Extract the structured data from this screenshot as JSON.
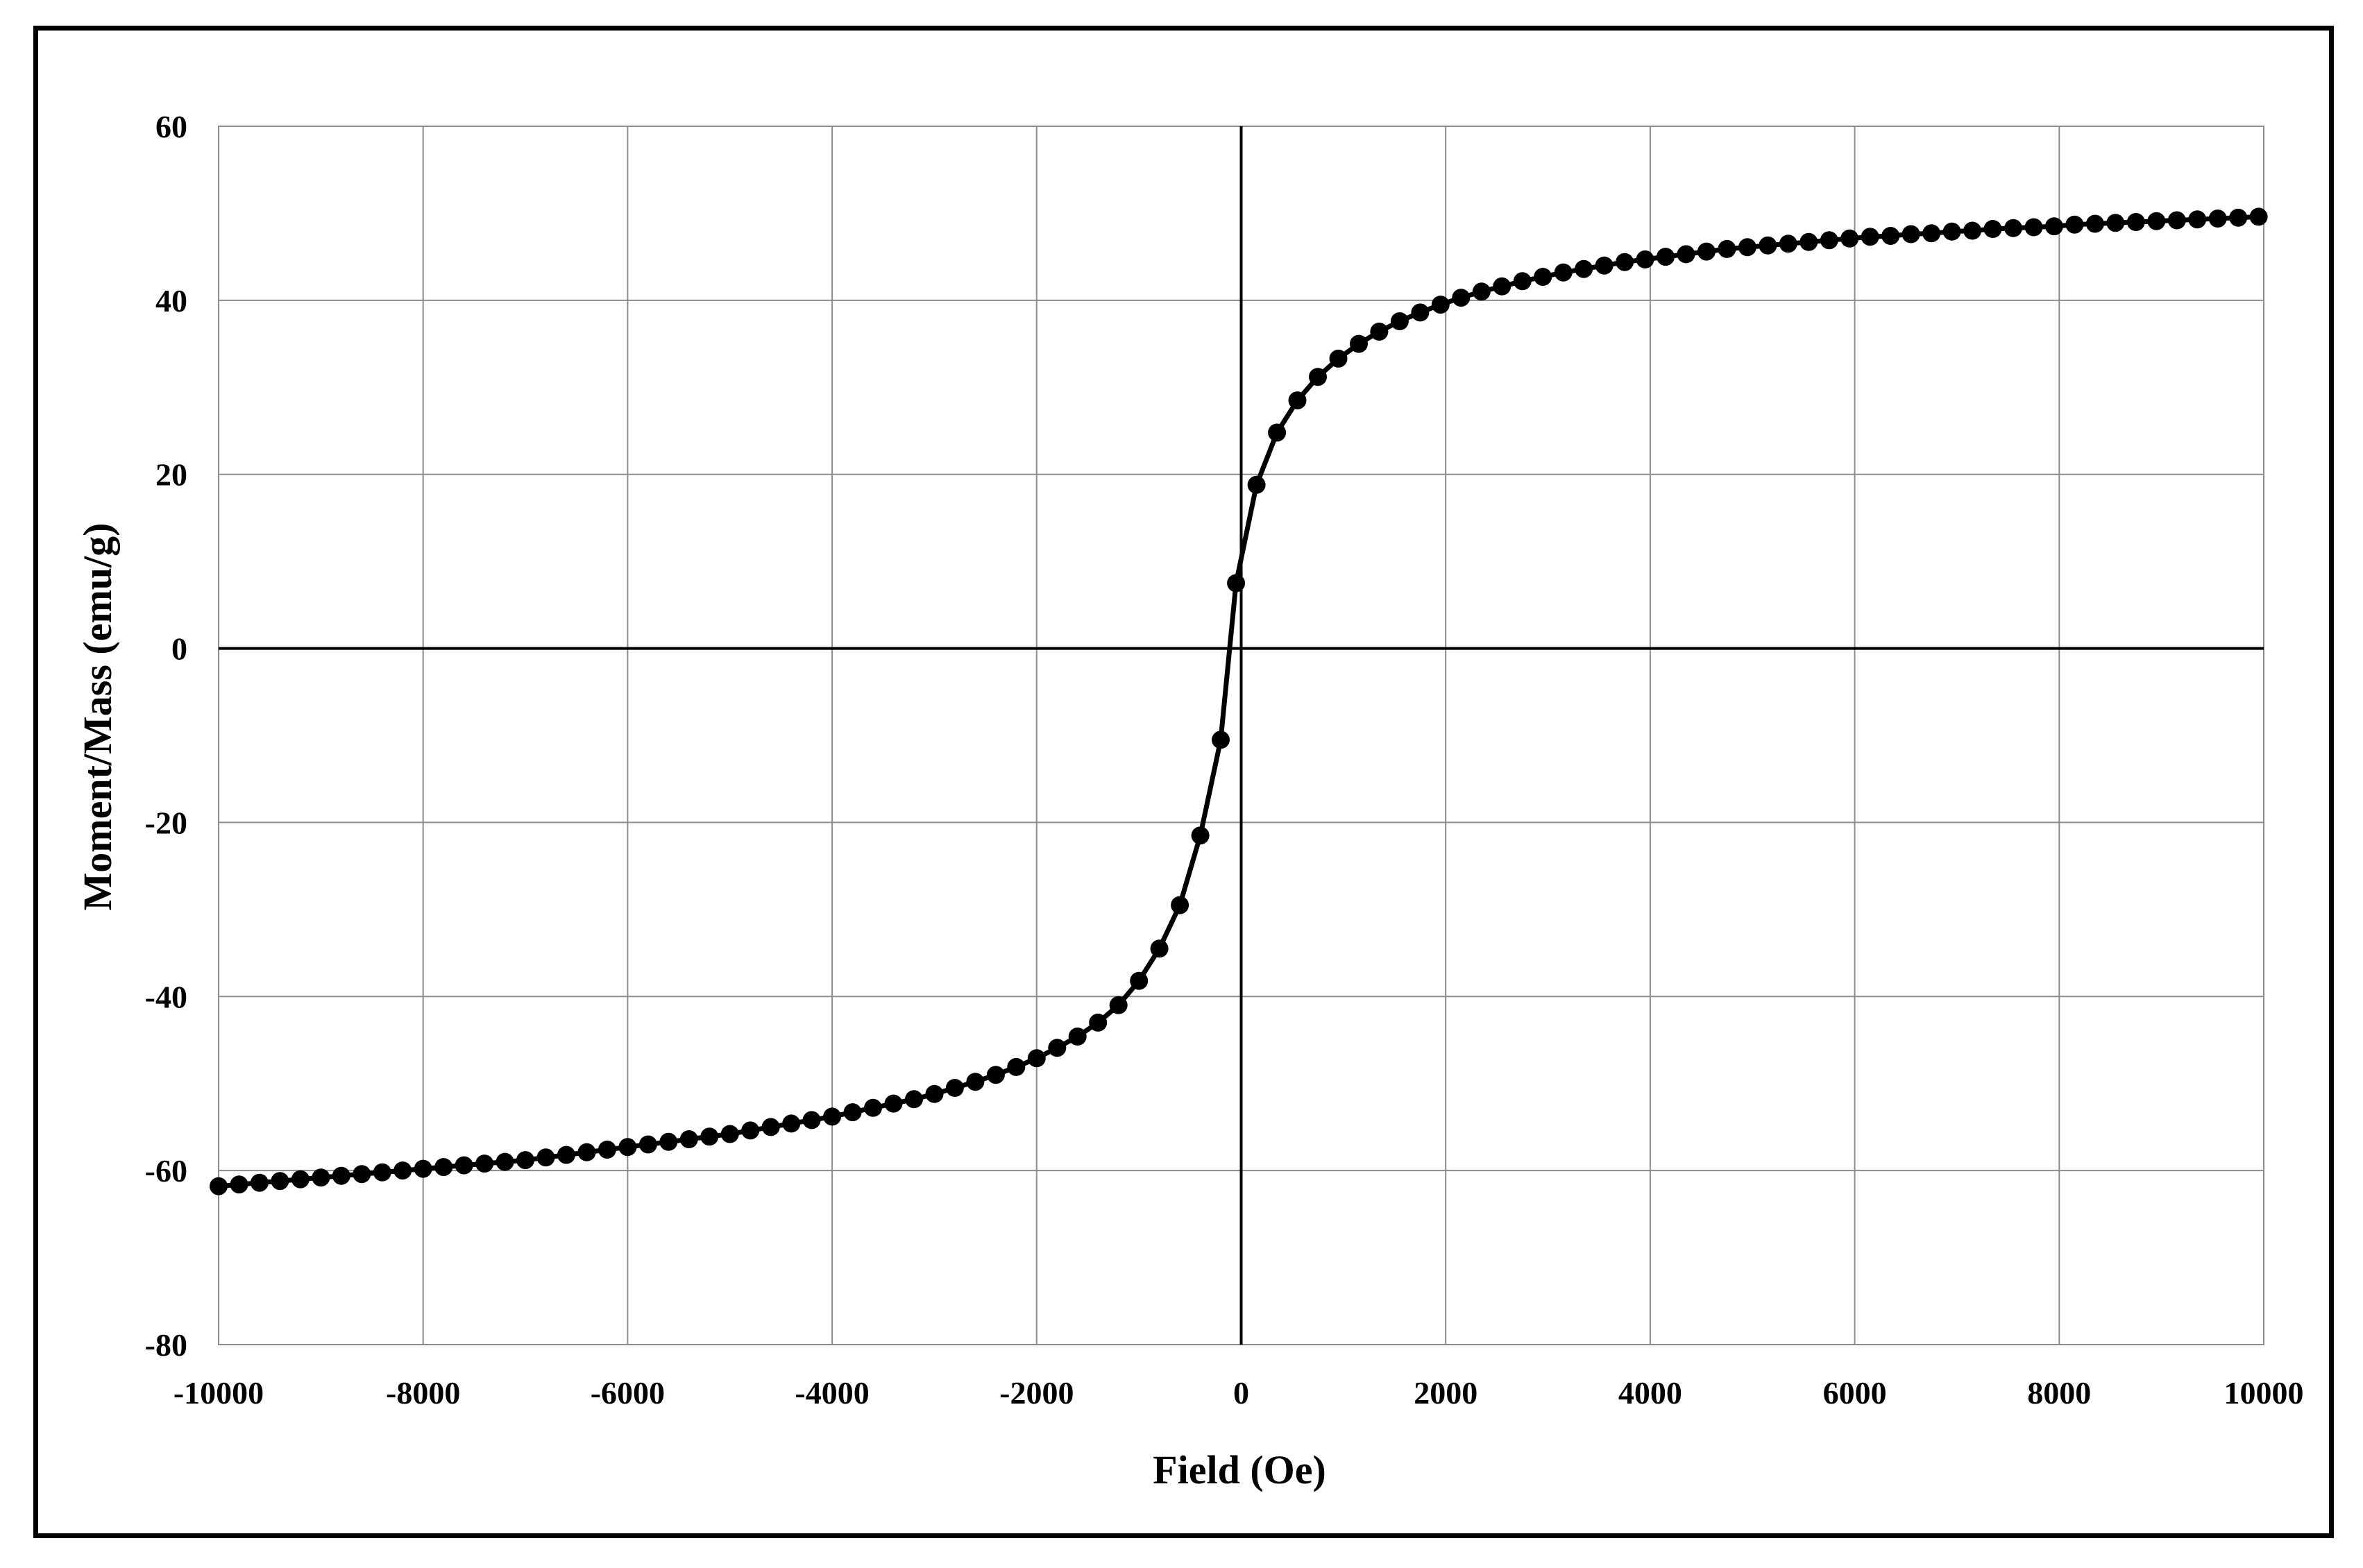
{
  "chart_data": {
    "type": "scatter",
    "title": "",
    "xlabel": "Field (Oe)",
    "ylabel": "Moment/Mass (emu/g)",
    "xlim": [
      -10000,
      10000
    ],
    "ylim": [
      -80,
      60
    ],
    "xticks": [
      -10000,
      -8000,
      -6000,
      -4000,
      -2000,
      0,
      2000,
      4000,
      6000,
      8000,
      10000
    ],
    "yticks": [
      -80,
      -60,
      -40,
      -20,
      0,
      20,
      40,
      60
    ],
    "grid": true,
    "legend": "none",
    "series": [
      {
        "line": true,
        "marker": "circle",
        "color": "#000000",
        "x": [
          -10000,
          -9800,
          -9600,
          -9400,
          -9200,
          -9000,
          -8800,
          -8600,
          -8400,
          -8200,
          -8000,
          -7800,
          -7600,
          -7400,
          -7200,
          -7000,
          -6800,
          -6600,
          -6400,
          -6200,
          -6000,
          -5800,
          -5600,
          -5400,
          -5200,
          -5000,
          -4800,
          -4600,
          -4400,
          -4200,
          -4000,
          -3800,
          -3600,
          -3400,
          -3200,
          -3000,
          -2800,
          -2600,
          -2400,
          -2200,
          -2000,
          -1800,
          -1600,
          -1400,
          -1200,
          -1000,
          -800,
          -600,
          -400,
          -200,
          -50,
          150,
          350,
          550,
          750,
          950,
          1150,
          1350,
          1550,
          1750,
          1950,
          2150,
          2350,
          2550,
          2750,
          2950,
          3150,
          3350,
          3550,
          3750,
          3950,
          4150,
          4350,
          4550,
          4750,
          4950,
          5150,
          5350,
          5550,
          5750,
          5950,
          6150,
          6350,
          6550,
          6750,
          6950,
          7150,
          7350,
          7550,
          7750,
          7950,
          8150,
          8350,
          8550,
          8750,
          8950,
          9150,
          9350,
          9550,
          9750,
          9950
        ],
        "y": [
          -61.8,
          -61.6,
          -61.4,
          -61.2,
          -61.0,
          -60.8,
          -60.6,
          -60.4,
          -60.2,
          -60.0,
          -59.8,
          -59.6,
          -59.4,
          -59.2,
          -59.0,
          -58.8,
          -58.5,
          -58.2,
          -57.9,
          -57.6,
          -57.3,
          -57.0,
          -56.7,
          -56.4,
          -56.1,
          -55.8,
          -55.4,
          -55.0,
          -54.6,
          -54.2,
          -53.8,
          -53.3,
          -52.8,
          -52.3,
          -51.8,
          -51.2,
          -50.5,
          -49.8,
          -49.0,
          -48.1,
          -47.1,
          -45.9,
          -44.6,
          -43.0,
          -41.0,
          -38.2,
          -34.5,
          -29.5,
          -21.5,
          -10.5,
          7.5,
          18.8,
          24.8,
          28.5,
          31.2,
          33.3,
          35.0,
          36.4,
          37.6,
          38.6,
          39.5,
          40.3,
          41.0,
          41.6,
          42.2,
          42.7,
          43.2,
          43.6,
          44.0,
          44.4,
          44.7,
          45.0,
          45.3,
          45.6,
          45.9,
          46.1,
          46.3,
          46.5,
          46.7,
          46.9,
          47.1,
          47.3,
          47.4,
          47.6,
          47.7,
          47.9,
          48.0,
          48.2,
          48.3,
          48.4,
          48.5,
          48.7,
          48.8,
          48.9,
          49.0,
          49.1,
          49.2,
          49.3,
          49.4,
          49.5,
          49.6
        ]
      }
    ]
  }
}
